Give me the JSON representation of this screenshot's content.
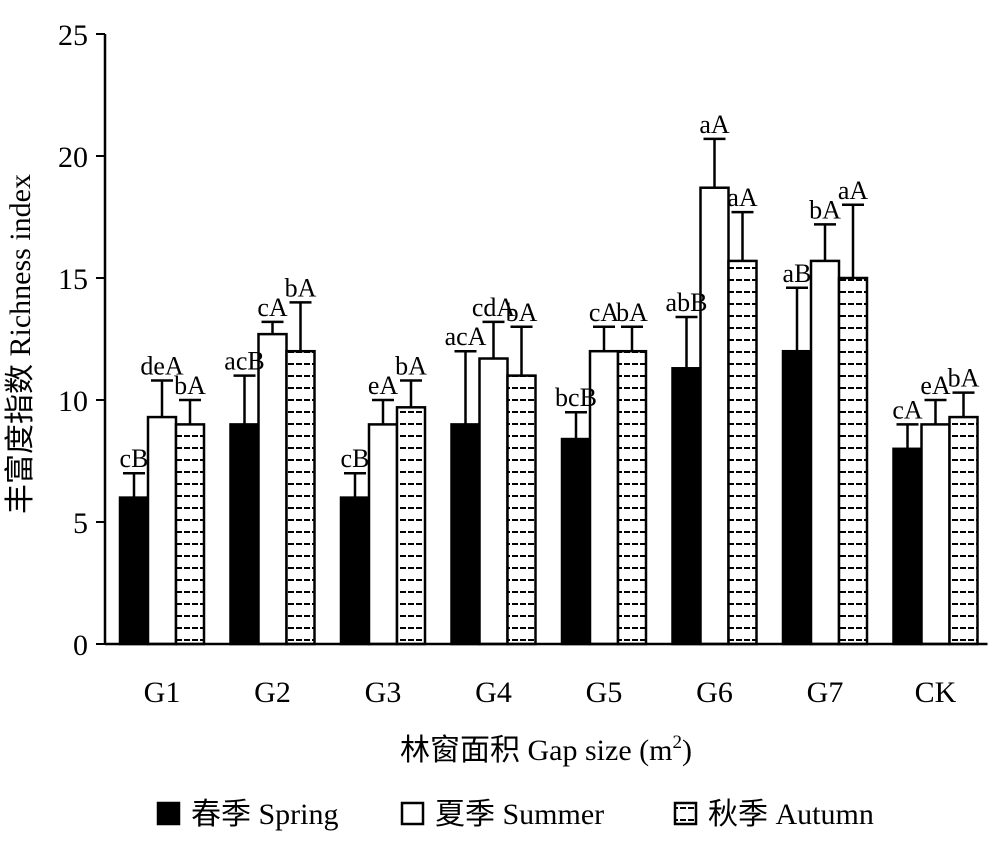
{
  "chart_data": {
    "type": "bar",
    "title": "",
    "xlabel": "林窗面积 Gap size (m",
    "xlabel_sup": "2",
    "xlabel_end": ")",
    "ylabel": "丰富度指数 Richness index",
    "ylim": [
      0,
      25
    ],
    "yticks": [
      0,
      5,
      10,
      15,
      20,
      25
    ],
    "ytick_labels": [
      "0",
      "5",
      "10",
      "15",
      "20",
      "25"
    ],
    "categories": [
      "G1",
      "G2",
      "G3",
      "G4",
      "G5",
      "G6",
      "G7",
      "CK"
    ],
    "legend_position": "bottom",
    "series": [
      {
        "name": "春季 Spring",
        "fill": "solid-black",
        "values": [
          6.0,
          9.0,
          6.0,
          9.0,
          8.4,
          11.3,
          12.0,
          8.0
        ],
        "errors": [
          1.0,
          2.0,
          1.0,
          3.0,
          1.1,
          2.1,
          2.6,
          1.0
        ],
        "labels": [
          "cB",
          "acB",
          "cB",
          "acA",
          "bcB",
          "abB",
          "aB",
          "cA"
        ]
      },
      {
        "name": "夏季 Summer",
        "fill": "white",
        "values": [
          9.3,
          12.7,
          9.0,
          11.7,
          12.0,
          18.7,
          15.7,
          9.0
        ],
        "errors": [
          1.5,
          0.5,
          1.0,
          1.5,
          1.0,
          2.0,
          1.5,
          1.0
        ],
        "labels": [
          "deA",
          "cA",
          "eA",
          "cdA",
          "cA",
          "aA",
          "bA",
          "eA"
        ]
      },
      {
        "name": "秋季 Autumn",
        "fill": "white-horizontal-hatch",
        "values": [
          9.0,
          12.0,
          9.7,
          11.0,
          12.0,
          15.7,
          15.0,
          9.3
        ],
        "errors": [
          1.0,
          2.0,
          1.1,
          2.0,
          1.0,
          2.0,
          3.0,
          1.0
        ],
        "labels": [
          "bA",
          "bA",
          "bA",
          "bA",
          "bA",
          "aA",
          "aA",
          "bA"
        ]
      }
    ]
  }
}
